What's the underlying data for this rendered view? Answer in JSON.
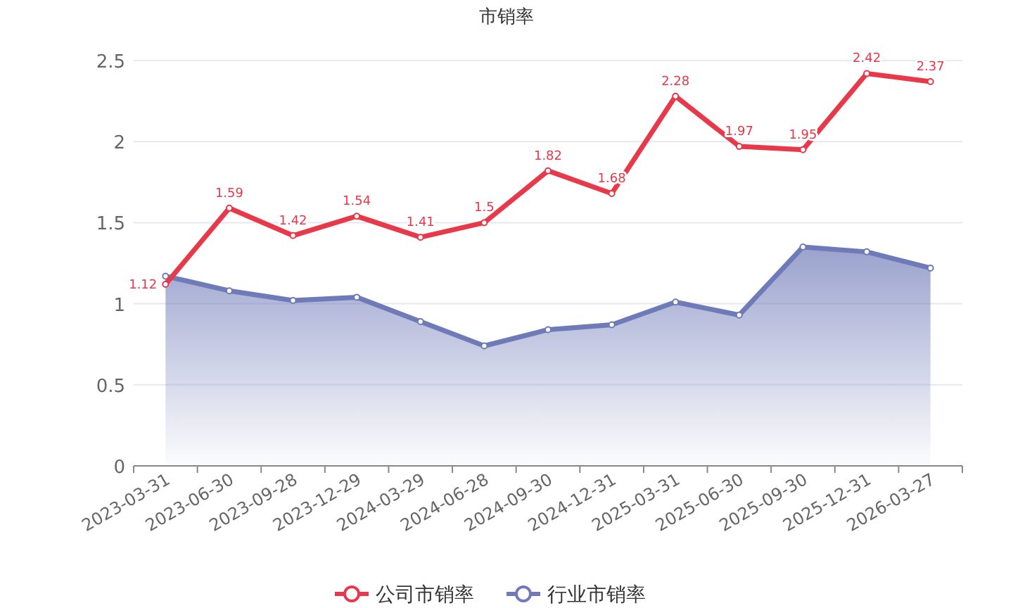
{
  "chart_data": {
    "type": "line",
    "title": "市销率",
    "categories": [
      "2023-03-31",
      "2023-06-30",
      "2023-09-28",
      "2023-12-29",
      "2024-03-29",
      "2024-06-28",
      "2024-09-30",
      "2024-12-31",
      "2025-03-31",
      "2025-06-30",
      "2025-09-30",
      "2025-12-31",
      "2026-03-27"
    ],
    "series": [
      {
        "name": "公司市销率",
        "type": "line",
        "color": "#e8394a",
        "values": [
          1.12,
          1.59,
          1.42,
          1.54,
          1.41,
          1.5,
          1.82,
          1.68,
          2.28,
          1.97,
          1.95,
          2.42,
          2.37
        ],
        "value_labels": [
          "1.12",
          "1.59",
          "1.42",
          "1.54",
          "1.41",
          "1.5",
          "1.82",
          "1.68",
          "2.28",
          "1.97",
          "1.95",
          "2.42",
          "2.37"
        ]
      },
      {
        "name": "行业市销率",
        "type": "area",
        "color": "#6f7ab8",
        "values": [
          1.17,
          1.08,
          1.02,
          1.04,
          0.89,
          0.74,
          0.84,
          0.87,
          1.01,
          0.93,
          1.35,
          1.32,
          1.22
        ]
      }
    ],
    "ylim": [
      0,
      2.5
    ],
    "yticks": [
      0,
      0.5,
      1,
      1.5,
      2,
      2.5
    ],
    "grid": "y",
    "legend": "bottom",
    "marker": "circle"
  }
}
